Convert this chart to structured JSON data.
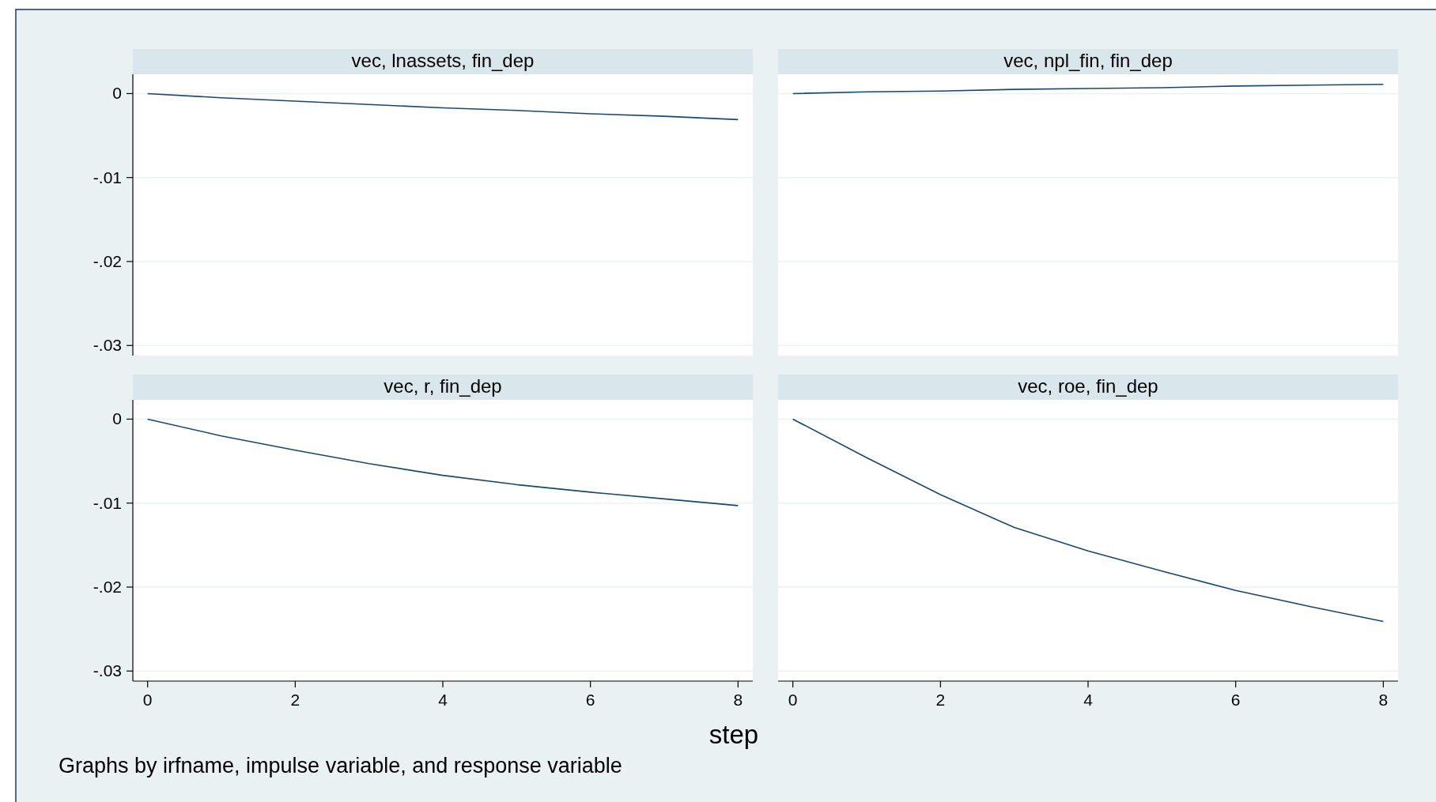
{
  "chart_data": [
    {
      "type": "line",
      "title": "vec, lnassets, fin_dep",
      "x": [
        0,
        1,
        2,
        3,
        4,
        5,
        6,
        7,
        8
      ],
      "series": [
        {
          "color": "#1a476f",
          "values": [
            0,
            -0.0005,
            -0.0009,
            -0.0013,
            -0.0017,
            -0.002,
            -0.0024,
            -0.0027,
            -0.0031
          ]
        }
      ],
      "xlim": [
        -0.2,
        8.2
      ],
      "ylim": [
        -0.0312,
        0.0023
      ],
      "yticks": [
        {
          "value": 0,
          "label": "0"
        },
        {
          "value": -0.01,
          "label": "-.01"
        },
        {
          "value": -0.02,
          "label": "-.02"
        },
        {
          "value": -0.03,
          "label": "-.03"
        }
      ],
      "grid": "y",
      "tick_labels": "y"
    },
    {
      "type": "line",
      "title": "vec, npl_fin, fin_dep",
      "x": [
        0,
        1,
        2,
        3,
        4,
        5,
        6,
        7,
        8
      ],
      "series": [
        {
          "color": "#1a476f",
          "values": [
            0,
            0.0002,
            0.0003,
            0.0005,
            0.0006,
            0.0007,
            0.0009,
            0.001,
            0.0011
          ]
        }
      ],
      "xlim": [
        -0.2,
        8.2
      ],
      "ylim": [
        -0.0312,
        0.0023
      ],
      "yticks": [
        0,
        -0.01,
        -0.02,
        -0.03
      ],
      "grid": "y",
      "tick_labels": false
    },
    {
      "type": "line",
      "title": "vec, r, fin_dep",
      "xlabel": "step",
      "annotations": [
        "Graphs by irfname, impulse variable, and response variable"
      ],
      "x": [
        0,
        1,
        2,
        3,
        4,
        5,
        6,
        7,
        8
      ],
      "series": [
        {
          "color": "#1a476f",
          "values": [
            0,
            -0.002,
            -0.0037,
            -0.0053,
            -0.0067,
            -0.0078,
            -0.0087,
            -0.0095,
            -0.0103
          ]
        }
      ],
      "xlim": [
        -0.2,
        8.2
      ],
      "ylim": [
        -0.0312,
        0.0023
      ],
      "xticks": [
        0,
        2,
        4,
        6,
        8
      ],
      "yticks": [
        {
          "value": 0,
          "label": "0"
        },
        {
          "value": -0.01,
          "label": "-.01"
        },
        {
          "value": -0.02,
          "label": "-.02"
        },
        {
          "value": -0.03,
          "label": "-.03"
        }
      ],
      "grid": "y"
    },
    {
      "type": "line",
      "title": "vec, roe, fin_dep",
      "x": [
        0,
        1,
        2,
        3,
        4,
        5,
        6,
        7,
        8
      ],
      "series": [
        {
          "color": "#1a476f",
          "values": [
            0,
            -0.0046,
            -0.009,
            -0.0129,
            -0.0157,
            -0.0181,
            -0.0204,
            -0.0223,
            -0.0241
          ]
        }
      ],
      "xlim": [
        -0.2,
        8.2
      ],
      "ylim": [
        -0.0312,
        0.0023
      ],
      "xticks": [
        0,
        2,
        4,
        6,
        8
      ],
      "yticks": [
        0,
        -0.01,
        -0.02,
        -0.03
      ],
      "grid": "y",
      "tick_labels": "x"
    }
  ]
}
